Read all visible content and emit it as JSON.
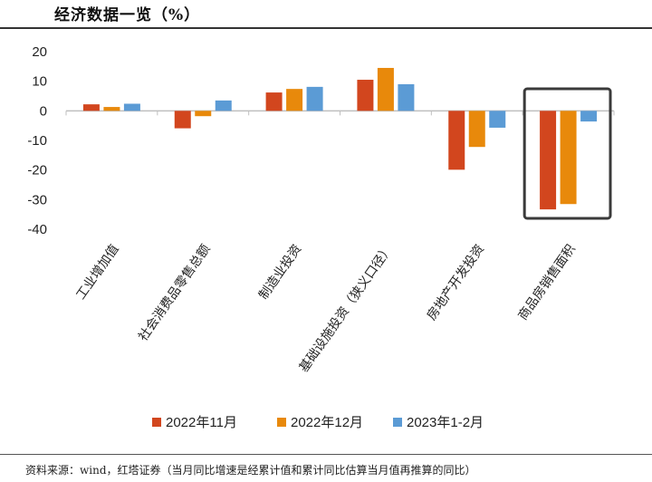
{
  "header": {
    "title": "经济数据一览（%）"
  },
  "footer": {
    "source": "资料来源：wind，红塔证券（当月同比增速是经累计值和累计同比估算当月值再推算的同比）"
  },
  "colors": {
    "s1": "#D2461E",
    "s2": "#E8890B",
    "s3": "#5B9BD5",
    "highlight": "#3a3a3a",
    "axis": "#bfbfbf"
  },
  "chart_data": {
    "type": "bar",
    "title": "经济数据一览（%）",
    "categories": [
      "工业增加值",
      "社会消费品零售总额",
      "制造业投资",
      "基础设施投资（狭义口径）",
      "房地产开发投资",
      "商品房销售面积"
    ],
    "series": [
      {
        "name": "2022年11月",
        "values": [
          2.2,
          -5.9,
          6.2,
          10.5,
          -19.9,
          -33.3
        ]
      },
      {
        "name": "2022年12月",
        "values": [
          1.3,
          -1.8,
          7.4,
          14.5,
          -12.2,
          -31.5
        ]
      },
      {
        "name": "2023年1-2月",
        "values": [
          2.4,
          3.5,
          8.1,
          9.0,
          -5.7,
          -3.6
        ]
      }
    ],
    "ylim": [
      -40,
      20
    ],
    "yticks": [
      20,
      10,
      0,
      -10,
      -20,
      -30,
      -40
    ],
    "legend_position": "bottom",
    "grid": false,
    "highlight_category": "商品房销售面积"
  }
}
